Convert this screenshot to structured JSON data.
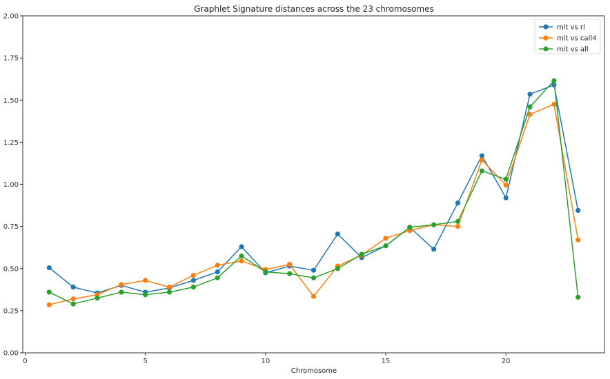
{
  "chart_data": {
    "type": "line",
    "title": "Graphlet Signature distances across the 23 chromosomes",
    "xlabel": "Chromosome",
    "ylabel": "",
    "xlim": [
      -0.1,
      24.1
    ],
    "ylim": [
      0.0,
      2.0
    ],
    "xticks": [
      0,
      5,
      10,
      15,
      20
    ],
    "xtick_labels": [
      "0",
      "5",
      "10",
      "15",
      "20"
    ],
    "yticks": [
      0.0,
      0.25,
      0.5,
      0.75,
      1.0,
      1.25,
      1.5,
      1.75,
      2.0
    ],
    "ytick_labels": [
      "0.00",
      "0.25",
      "0.50",
      "0.75",
      "1.00",
      "1.25",
      "1.50",
      "1.75",
      "2.00"
    ],
    "grid": false,
    "legend_position": "top-right",
    "x": [
      1,
      2,
      3,
      4,
      5,
      6,
      7,
      8,
      9,
      10,
      11,
      12,
      13,
      14,
      15,
      16,
      17,
      18,
      19,
      20,
      21,
      22,
      23
    ],
    "series": [
      {
        "name": "mit vs rl",
        "color": "#1f77b4",
        "values": [
          0.505,
          0.39,
          0.355,
          0.4,
          0.36,
          0.385,
          0.43,
          0.48,
          0.63,
          0.475,
          0.515,
          0.49,
          0.705,
          0.565,
          0.635,
          0.745,
          0.615,
          0.89,
          1.17,
          0.92,
          1.535,
          1.59,
          0.845
        ]
      },
      {
        "name": "mit vs call4",
        "color": "#ff7f0e",
        "values": [
          0.285,
          0.32,
          0.345,
          0.405,
          0.43,
          0.39,
          0.46,
          0.52,
          0.545,
          0.495,
          0.525,
          0.335,
          0.515,
          0.58,
          0.68,
          0.725,
          0.76,
          0.75,
          1.145,
          0.995,
          1.415,
          1.475,
          0.67
        ]
      },
      {
        "name": "mit vs all",
        "color": "#2ca02c",
        "values": [
          0.36,
          0.29,
          0.325,
          0.36,
          0.345,
          0.36,
          0.39,
          0.445,
          0.575,
          0.48,
          0.47,
          0.445,
          0.5,
          0.585,
          0.635,
          0.745,
          0.76,
          0.78,
          1.08,
          1.03,
          1.46,
          1.615,
          0.33
        ]
      }
    ]
  }
}
